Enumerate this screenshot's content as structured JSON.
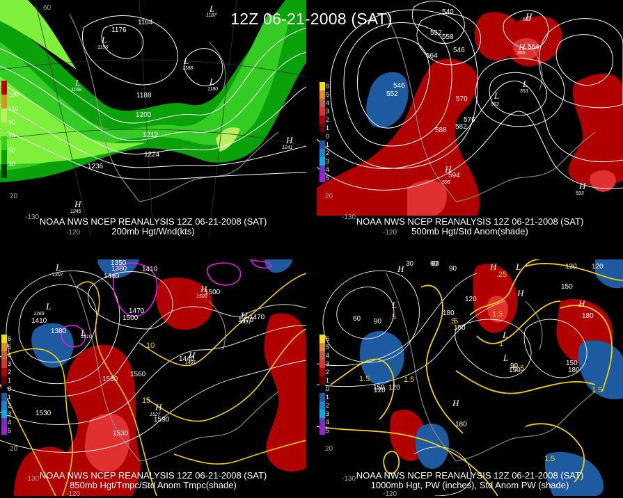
{
  "title": "12Z 06-21-2008 (SAT)",
  "panels": [
    {
      "caption_line1": "NOAA NWS NCEP REANALYSIS 12Z 06-21-2008 (SAT)",
      "caption_line2": "200mb Hgt/Wnd(kts)",
      "legend": [
        "130",
        "110",
        "90",
        "70",
        "50",
        "30"
      ],
      "contour_labels": [
        "1176",
        "1164",
        "1188",
        "1200",
        "1212",
        "1224",
        "1236",
        "1188",
        "1180",
        "1156",
        "1168",
        "1187",
        "1241",
        "1245"
      ],
      "lon_labels": [
        "-130",
        "-120",
        "60",
        "20"
      ]
    },
    {
      "caption_line1": "NOAA NWS NCEP REANALYSIS 12Z 06-21-2008 (SAT)",
      "caption_line2": "500mb Hgt/Std Anom(shade)",
      "legend": [
        "6",
        "5",
        "4",
        "3",
        "2",
        "1",
        "0",
        "1",
        "2",
        "3",
        "4",
        "5"
      ],
      "contour_labels": [
        "540",
        "552",
        "558",
        "564",
        "546",
        "570",
        "576",
        "582",
        "588",
        "594",
        "552",
        "546",
        "564",
        "582",
        "566",
        "563",
        "553",
        "593",
        "598"
      ],
      "lon_labels": [
        "-130",
        "-120",
        "20"
      ]
    },
    {
      "caption_line1": "NOAA NWS NCEP REANALYSIS 12Z 06-21-2008 (SAT)",
      "caption_line2": "850mb Hgt/Tmpc/Std Anom Tmpc(shade)",
      "legend": [
        "6",
        "5",
        "4",
        "3",
        "2",
        "1",
        "0",
        "1",
        "2",
        "3",
        "4",
        "5"
      ],
      "contour_labels": [
        "1350",
        "1380",
        "1410",
        "1440",
        "1470",
        "1500",
        "1380",
        "1410",
        "1470",
        "1530",
        "1560",
        "1590",
        "1530",
        "1530",
        "1440",
        "1470",
        "1500",
        "1310",
        "1307",
        "1369",
        "1451",
        "1491",
        "1527",
        "1500",
        "15",
        "10"
      ],
      "lon_labels": [
        "-130",
        "-120",
        "20"
      ]
    },
    {
      "caption_line1": "NOAA NWS NCEP REANALYSIS 12Z 06-21-2008 (SAT)",
      "caption_line2": "1000mb Hgt, PW (inches), Std Anom PW (shade)",
      "legend": [
        "6",
        "5",
        "4",
        "3",
        "2",
        "1",
        "0",
        "1",
        "2",
        "3",
        "4",
        "5"
      ],
      "contour_labels": [
        "60",
        "90",
        "120",
        "150",
        "180",
        "60",
        "90",
        "120",
        "150",
        "180",
        "120",
        "150",
        "180",
        "150",
        "120",
        "180",
        "150",
        "90",
        "60",
        "30",
        "120",
        "1.5",
        ".5",
        ".25",
        ".5",
        "1.5",
        "1.5",
        "1",
        "1.5",
        "1.5",
        ".5",
        "1.5"
      ],
      "lon_labels": [
        "-130",
        "-120",
        "20"
      ]
    }
  ]
}
